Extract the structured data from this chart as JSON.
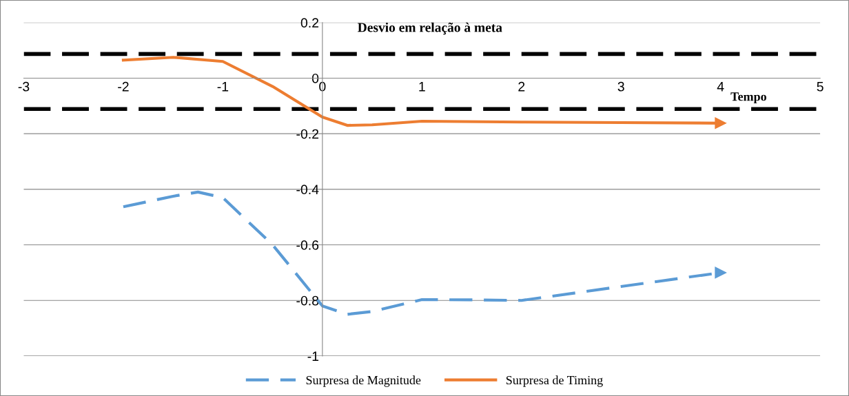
{
  "chart_data": {
    "type": "line",
    "xlabel": "Tempo",
    "ylabel": "Desvio em relação à meta",
    "xlim": [
      -3,
      5
    ],
    "xticks": [
      -3,
      -2,
      -1,
      0,
      1,
      2,
      3,
      4,
      5
    ],
    "ylim": [
      -1,
      0.2
    ],
    "yticks": [
      -1,
      -0.8,
      -0.6,
      -0.4,
      -0.2,
      0,
      0.2
    ],
    "grid": "y",
    "legend": "bottom",
    "series": [
      {
        "name": "Surpresa de Magnitude",
        "color": "#5b9bd5",
        "line_style": "dashed",
        "x": [
          -2,
          -1.5,
          -1.25,
          -1,
          -0.5,
          0,
          0.25,
          0.5,
          1,
          1.5,
          2,
          3,
          4
        ],
        "values": [
          -0.463,
          -0.425,
          -0.41,
          -0.43,
          -0.6,
          -0.82,
          -0.85,
          -0.84,
          -0.797,
          -0.798,
          -0.8,
          -0.75,
          -0.7
        ]
      },
      {
        "name": "Surpresa de Timing",
        "color": "#ed7d31",
        "line_style": "solid",
        "x": [
          -2,
          -1.5,
          -1,
          -0.5,
          0,
          0.25,
          0.5,
          1,
          2,
          3,
          4
        ],
        "values": [
          0.065,
          0.075,
          0.06,
          -0.03,
          -0.14,
          -0.17,
          -0.168,
          -0.155,
          -0.158,
          -0.16,
          -0.162
        ]
      }
    ],
    "ref_lines": [
      {
        "axis": "y",
        "value": 0.087,
        "color": "#000000",
        "line_style": "dashed"
      },
      {
        "axis": "y",
        "value": -0.111,
        "color": "#000000",
        "line_style": "dashed"
      }
    ]
  }
}
